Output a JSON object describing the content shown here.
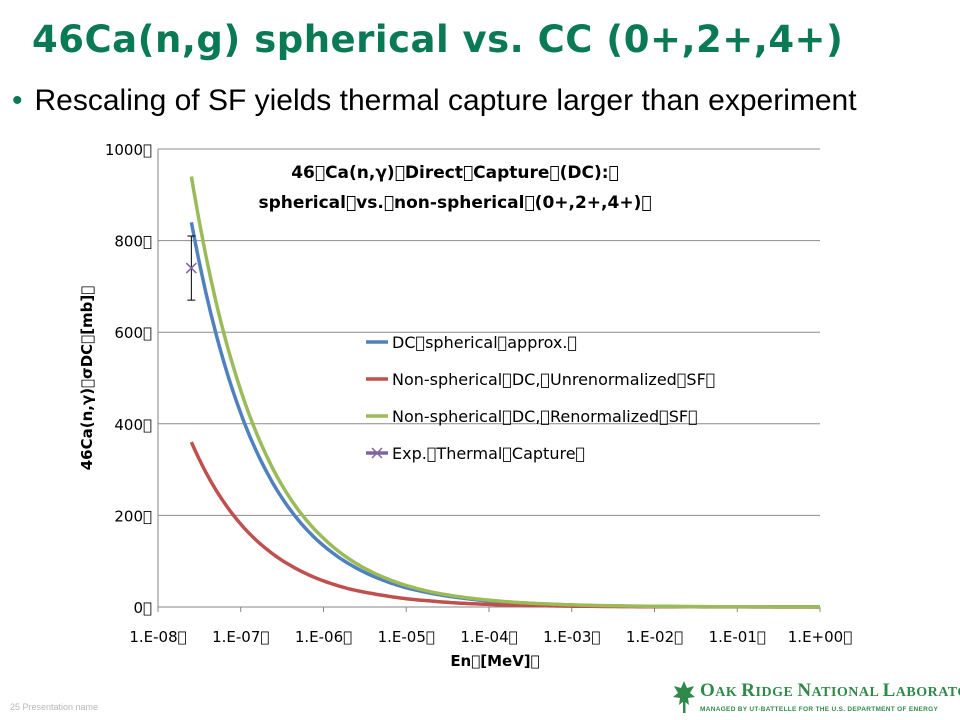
{
  "slide": {
    "title": "46Ca(n,g) spherical vs. CC (0+,2+,4+)",
    "bullet": "Rescaling of SF yields thermal capture larger than experiment",
    "footer": "25   Presentation name",
    "logo_name_big1": "O",
    "logo_name_small1": "AK ",
    "logo_name_big2": "R",
    "logo_name_small2": "IDGE ",
    "logo_name_big3": "N",
    "logo_name_small3": "ATIONAL ",
    "logo_name_big4": "L",
    "logo_name_small4": "ABORATORY",
    "logo_sub": "MANAGED BY UT-BATTELLE FOR THE U.S. DEPARTMENT OF ENERGY"
  },
  "colors": {
    "title": "#0a7a55",
    "ornl_green": "#2f8a4a",
    "dc_spherical": "#4f81bd",
    "non_spherical_unrenorm": "#c0504d",
    "non_spherical_renorm": "#9bbb59",
    "exp_thermal": "#8064a2"
  },
  "chart_data": {
    "type": "line",
    "title_line1": "46\u0000Ca(n,γ)\u0000Direct\u0000Capture\u0000(DC):\u0000",
    "title_line2": "spherical\u0000vs.\u0000non-spherical\u0000(0+,2+,4+)\u0000",
    "xlabel": "En\u0000[MeV]\u0000",
    "ylabel": "46Ca(n,γ)\u0000σDC\u0000[mb]\u0000",
    "x_scale": "log",
    "xlim": [
      1e-08,
      1
    ],
    "ylim": [
      0,
      1000
    ],
    "x_tick_values": [
      1e-08,
      1e-07,
      1e-06,
      1e-05,
      0.0001,
      0.001,
      0.01,
      0.1,
      1
    ],
    "x_tick_labels": [
      "1.E-08\u0000",
      "1.E-07\u0000",
      "1.E-06\u0000",
      "1.E-05\u0000",
      "1.E-04\u0000",
      "1.E-03\u0000",
      "1.E-02\u0000",
      "1.E-01\u0000",
      "1.E+00\u0000"
    ],
    "y_tick_values": [
      0,
      200,
      400,
      600,
      800,
      1000
    ],
    "y_tick_labels": [
      "0\u0000",
      "200\u0000",
      "400\u0000",
      "600\u0000",
      "800\u0000",
      "1000\u0000"
    ],
    "grid": "horizontal",
    "legend_position": "center-right",
    "series": [
      {
        "name": "DC\u0000spherical\u0000approx.\u0000",
        "color": "#4f81bd",
        "x": [
          2.53e-08,
          5e-08,
          1e-07,
          2e-07,
          5e-07,
          1e-06,
          2e-06,
          5e-06,
          1e-05,
          2e-05,
          5e-05,
          0.0001,
          0.0002,
          0.0005,
          0.001,
          0.01,
          0.1,
          1
        ],
        "y": [
          840,
          598,
          423,
          299,
          189,
          134,
          95,
          60,
          42,
          30,
          19,
          13,
          9,
          6,
          4,
          1.3,
          0.4,
          0.1
        ]
      },
      {
        "name": "Non-spherical\u0000DC,\u0000Unrenormalized\u0000SF\u0000",
        "color": "#c0504d",
        "x": [
          2.53e-08,
          5e-08,
          1e-07,
          2e-07,
          5e-07,
          1e-06,
          2e-06,
          5e-06,
          1e-05,
          2e-05,
          5e-05,
          0.0001,
          0.0002,
          0.0005,
          0.001,
          0.01,
          0.1,
          1
        ],
        "y": [
          360,
          256,
          181,
          128,
          81,
          57,
          40,
          26,
          18,
          13,
          8,
          5.7,
          4,
          2.6,
          1.8,
          0.6,
          0.2,
          0.05
        ]
      },
      {
        "name": "Non-spherical\u0000DC,\u0000Renormalized\u0000SF\u0000",
        "color": "#9bbb59",
        "x": [
          2.53e-08,
          5e-08,
          1e-07,
          2e-07,
          5e-07,
          1e-06,
          2e-06,
          5e-06,
          1e-05,
          2e-05,
          5e-05,
          0.0001,
          0.0002,
          0.0005,
          0.001,
          0.01,
          0.1,
          1
        ],
        "y": [
          940,
          668,
          473,
          334,
          211,
          150,
          106,
          67,
          47,
          33,
          21,
          15,
          10.5,
          6.7,
          4.7,
          1.5,
          0.5,
          0.15
        ]
      }
    ],
    "points": [
      {
        "name": "Exp.\u0000Thermal\u0000Capture\u0000",
        "color": "#8064a2",
        "x": 2.53e-08,
        "y": 740,
        "err_low": 670,
        "err_high": 810
      }
    ]
  }
}
